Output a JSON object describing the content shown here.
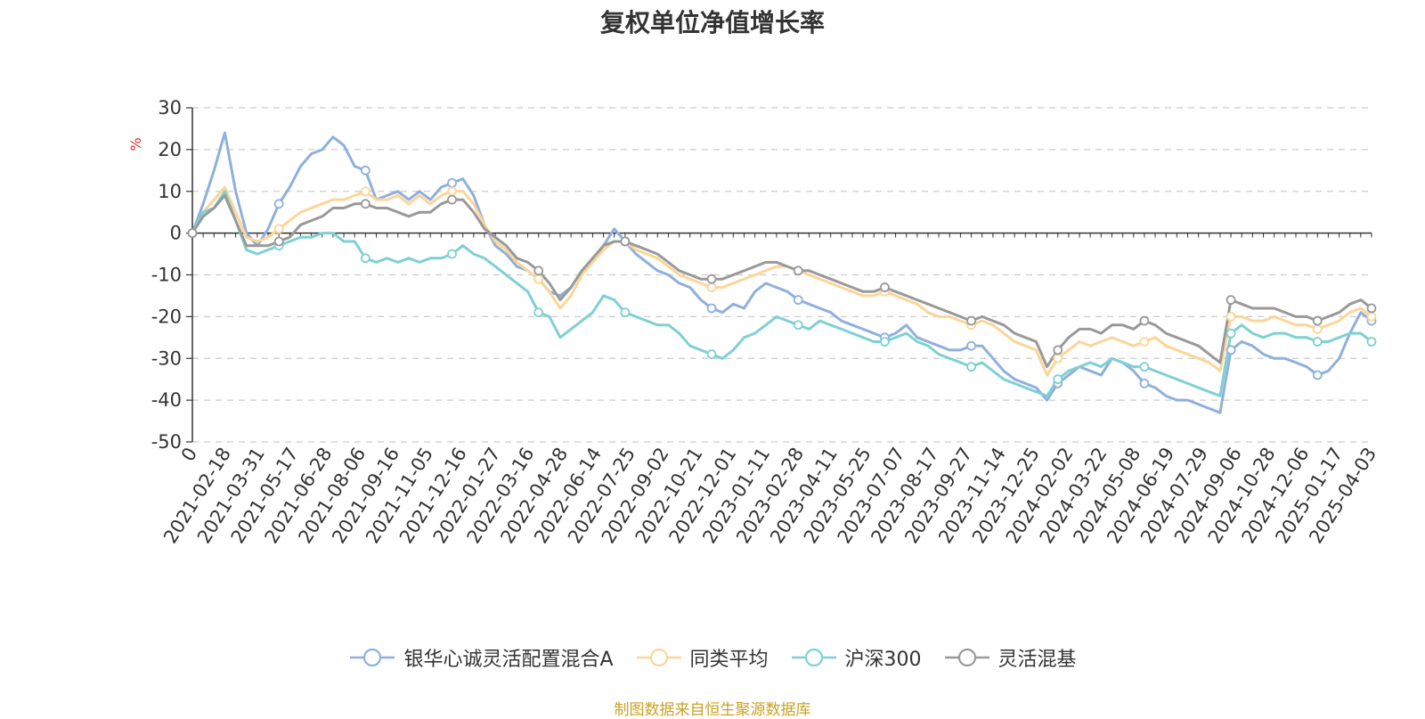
{
  "chart_data": {
    "type": "line",
    "title": "复权单位净值增长率",
    "ylabel": "%",
    "ylim": [
      -50,
      30
    ],
    "yticks": [
      30,
      20,
      10,
      0,
      -10,
      -20,
      -30,
      -40,
      -50
    ],
    "grid": true,
    "legend_position": "bottom",
    "x_tick_labels": [
      "0",
      "2021-02-18",
      "2021-03-31",
      "2021-05-17",
      "2021-06-28",
      "2021-08-06",
      "2021-09-16",
      "2021-11-05",
      "2021-12-16",
      "2022-01-27",
      "2022-03-16",
      "2022-04-28",
      "2022-06-14",
      "2022-07-25",
      "2022-09-02",
      "2022-10-21",
      "2022-12-01",
      "2023-01-11",
      "2023-02-28",
      "2023-04-11",
      "2023-05-25",
      "2023-07-07",
      "2023-08-17",
      "2023-09-27",
      "2023-11-14",
      "2023-12-25",
      "2024-02-02",
      "2024-03-22",
      "2024-05-08",
      "2024-06-19",
      "2024-07-29",
      "2024-09-06",
      "2024-10-28",
      "2024-12-06",
      "2025-01-17",
      "2025-04-03"
    ],
    "x": [
      "0",
      "2021-01-25",
      "2021-02-04",
      "2021-02-18",
      "2021-03-01",
      "2021-03-10",
      "2021-03-17",
      "2021-03-31",
      "2021-04-14",
      "2021-04-28",
      "2021-05-17",
      "2021-05-31",
      "2021-06-15",
      "2021-06-28",
      "2021-07-12",
      "2021-07-26",
      "2021-08-06",
      "2021-08-20",
      "2021-09-02",
      "2021-09-16",
      "2021-10-08",
      "2021-10-22",
      "2021-11-05",
      "2021-11-19",
      "2021-12-03",
      "2021-12-16",
      "2021-12-30",
      "2022-01-13",
      "2022-01-27",
      "2022-02-15",
      "2022-03-01",
      "2022-03-16",
      "2022-03-30",
      "2022-04-14",
      "2022-04-28",
      "2022-05-17",
      "2022-05-31",
      "2022-06-14",
      "2022-06-28",
      "2022-07-11",
      "2022-07-25",
      "2022-08-08",
      "2022-08-19",
      "2022-09-02",
      "2022-09-19",
      "2022-10-10",
      "2022-10-21",
      "2022-11-03",
      "2022-11-17",
      "2022-12-01",
      "2022-12-14",
      "2022-12-28",
      "2023-01-11",
      "2023-02-01",
      "2023-02-15",
      "2023-02-28",
      "2023-03-14",
      "2023-03-28",
      "2023-04-11",
      "2023-04-25",
      "2023-05-11",
      "2023-05-25",
      "2023-06-08",
      "2023-06-21",
      "2023-07-07",
      "2023-07-21",
      "2023-08-03",
      "2023-08-17",
      "2023-08-31",
      "2023-09-14",
      "2023-09-27",
      "2023-10-18",
      "2023-11-01",
      "2023-11-14",
      "2023-11-28",
      "2023-12-11",
      "2023-12-25",
      "2024-01-08",
      "2024-01-22",
      "2024-02-02",
      "2024-02-26",
      "2024-03-08",
      "2024-03-22",
      "2024-04-08",
      "2024-04-22",
      "2024-05-08",
      "2024-05-22",
      "2024-06-05",
      "2024-06-19",
      "2024-07-03",
      "2024-07-17",
      "2024-07-29",
      "2024-08-12",
      "2024-08-26",
      "2024-09-06",
      "2024-09-20",
      "2024-09-30",
      "2024-10-14",
      "2024-10-28",
      "2024-11-11",
      "2024-11-22",
      "2024-12-06",
      "2024-12-20",
      "2025-01-06",
      "2025-01-17",
      "2025-02-07",
      "2025-02-21",
      "2025-03-07",
      "2025-03-21",
      "2025-04-03"
    ],
    "series": [
      {
        "name": "银华心诚灵活配置混合A",
        "color": "#8fb0dc",
        "values": [
          0,
          7,
          15,
          24,
          10,
          0,
          -3,
          1,
          7,
          11,
          16,
          19,
          20,
          23,
          21,
          16,
          15,
          8,
          9,
          10,
          8,
          10,
          8,
          11,
          12,
          13,
          9,
          2,
          -3,
          -5,
          -8,
          -9,
          -11,
          -14,
          -15,
          -13,
          -9,
          -7,
          -3,
          1,
          -2,
          -5,
          -7,
          -9,
          -10,
          -12,
          -13,
          -16,
          -18,
          -19,
          -17,
          -18,
          -14,
          -12,
          -13,
          -14,
          -16,
          -17,
          -18,
          -19,
          -21,
          -22,
          -23,
          -24,
          -25,
          -24,
          -22,
          -25,
          -26,
          -27,
          -28,
          -28,
          -27,
          -27,
          -30,
          -33,
          -35,
          -36,
          -37,
          -40,
          -36,
          -34,
          -32,
          -33,
          -34,
          -30,
          -31,
          -33,
          -36,
          -37,
          -39,
          -40,
          -40,
          -41,
          -42,
          -43,
          -28,
          -26,
          -27,
          -29,
          -30,
          -30,
          -31,
          -32,
          -34,
          -33,
          -30,
          -24,
          -19,
          -21
        ]
      },
      {
        "name": "同类平均",
        "color": "#fcd598",
        "values": [
          0,
          5,
          8,
          11,
          5,
          -1,
          -2,
          -1,
          1,
          3,
          5,
          6,
          7,
          8,
          8,
          9,
          10,
          8,
          8,
          9,
          7,
          9,
          7,
          9,
          10,
          10,
          7,
          2,
          -2,
          -4,
          -7,
          -9,
          -11,
          -14,
          -18,
          -15,
          -10,
          -7,
          -4,
          -2,
          -2,
          -4,
          -5,
          -6,
          -8,
          -10,
          -11,
          -12,
          -13,
          -13,
          -12,
          -11,
          -10,
          -9,
          -8,
          -8,
          -9,
          -10,
          -11,
          -12,
          -13,
          -14,
          -15,
          -15,
          -14,
          -15,
          -16,
          -17,
          -19,
          -20,
          -20,
          -21,
          -22,
          -21,
          -22,
          -24,
          -26,
          -27,
          -28,
          -34,
          -30,
          -28,
          -26,
          -27,
          -26,
          -25,
          -26,
          -27,
          -26,
          -25,
          -27,
          -28,
          -29,
          -30,
          -31,
          -33,
          -20,
          -20,
          -21,
          -21,
          -20,
          -21,
          -22,
          -22,
          -23,
          -22,
          -21,
          -19,
          -18,
          -20
        ]
      },
      {
        "name": "沪深300",
        "color": "#7fd0d4",
        "values": [
          0,
          5,
          6,
          10,
          3,
          -4,
          -5,
          -4,
          -3,
          -2,
          -1,
          -1,
          0,
          0,
          -2,
          -2,
          -6,
          -7,
          -6,
          -7,
          -6,
          -7,
          -6,
          -6,
          -5,
          -3,
          -5,
          -6,
          -8,
          -10,
          -12,
          -14,
          -19,
          -20,
          -25,
          -23,
          -21,
          -19,
          -15,
          -16,
          -19,
          -20,
          -21,
          -22,
          -22,
          -24,
          -27,
          -28,
          -29,
          -30,
          -28,
          -25,
          -24,
          -22,
          -20,
          -21,
          -22,
          -23,
          -21,
          -22,
          -23,
          -24,
          -25,
          -26,
          -26,
          -25,
          -24,
          -26,
          -27,
          -29,
          -30,
          -31,
          -32,
          -31,
          -33,
          -35,
          -36,
          -37,
          -38,
          -39,
          -35,
          -33,
          -32,
          -31,
          -32,
          -30,
          -31,
          -32,
          -32,
          -33,
          -34,
          -35,
          -36,
          -37,
          -38,
          -39,
          -24,
          -22,
          -24,
          -25,
          -24,
          -24,
          -25,
          -25,
          -26,
          -26,
          -25,
          -24,
          -24,
          -26
        ]
      },
      {
        "name": "灵活混基",
        "color": "#999999",
        "values": [
          0,
          4,
          6,
          9,
          3,
          -3,
          -3,
          -3,
          -2,
          -1,
          2,
          3,
          4,
          6,
          6,
          7,
          7,
          6,
          6,
          5,
          4,
          5,
          5,
          7,
          8,
          8,
          5,
          1,
          -1,
          -3,
          -6,
          -7,
          -9,
          -12,
          -16,
          -13,
          -9,
          -6,
          -3,
          -2,
          -2,
          -3,
          -4,
          -5,
          -7,
          -9,
          -10,
          -11,
          -11,
          -11,
          -10,
          -9,
          -8,
          -7,
          -7,
          -8,
          -9,
          -9,
          -10,
          -11,
          -12,
          -13,
          -14,
          -14,
          -13,
          -14,
          -15,
          -16,
          -17,
          -18,
          -19,
          -20,
          -21,
          -20,
          -21,
          -22,
          -24,
          -25,
          -26,
          -32,
          -28,
          -25,
          -23,
          -23,
          -24,
          -22,
          -22,
          -23,
          -21,
          -22,
          -24,
          -25,
          -26,
          -27,
          -29,
          -31,
          -16,
          -17,
          -18,
          -18,
          -18,
          -19,
          -20,
          -20,
          -21,
          -20,
          -19,
          -17,
          -16,
          -18
        ]
      }
    ]
  },
  "source_note": "制图数据来自恒生聚源数据库"
}
